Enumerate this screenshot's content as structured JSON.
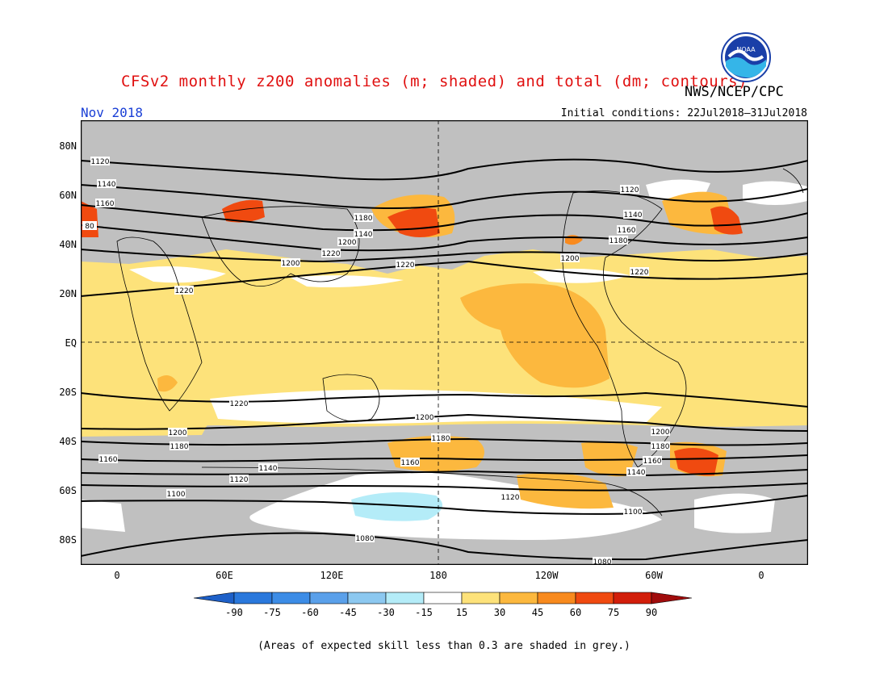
{
  "header": {
    "title": "CFSv2 monthly z200 anomalies (m; shaded) and total (dm; contours)",
    "agency": "NWS/NCEP/CPC",
    "logo_text": "NOAA",
    "month": "Nov 2018",
    "initial_conditions": "Initial conditions: 22Jul2018–31Jul2018"
  },
  "axes": {
    "lat_labels": [
      "80N",
      "60N",
      "40N",
      "20N",
      "EQ",
      "20S",
      "40S",
      "60S",
      "80S"
    ],
    "lon_labels": [
      "0",
      "60E",
      "120E",
      "180",
      "120W",
      "60W",
      "0"
    ]
  },
  "contours": {
    "labels": [
      "1120",
      "1140",
      "1160",
      "1180",
      "1200",
      "1220",
      "1120",
      "1140",
      "1160",
      "1180",
      "1200",
      "1220",
      "1120",
      "1140",
      "1160",
      "1180",
      "1200",
      "1220",
      "1220",
      "1200",
      "1180",
      "1160",
      "1140",
      "1120",
      "1100",
      "1080",
      "1220",
      "1200",
      "1180",
      "1160",
      "1140",
      "1120",
      "1100",
      "1080",
      "1200",
      "1180",
      "1160",
      "1140",
      "1120",
      "1100",
      "80",
      "1180",
      "1220"
    ]
  },
  "colorbar": {
    "labels": [
      "-90",
      "-75",
      "-60",
      "-45",
      "-30",
      "-15",
      "15",
      "30",
      "45",
      "60",
      "75",
      "90"
    ],
    "colors": [
      "#1e60c8",
      "#2a78dc",
      "#3c8ce6",
      "#5aa0ea",
      "#8cc8f0",
      "#b4ecf8",
      "#ffffff",
      "#fde27a",
      "#fcb83e",
      "#f88a1e",
      "#f04a10",
      "#d21e0a",
      "#a00c0c"
    ]
  },
  "map_colors": {
    "grey": "#c0c0c0",
    "land_line": "#000000"
  },
  "footer": {
    "note": "(Areas of expected skill less than 0.3 are shaded in grey.)"
  }
}
